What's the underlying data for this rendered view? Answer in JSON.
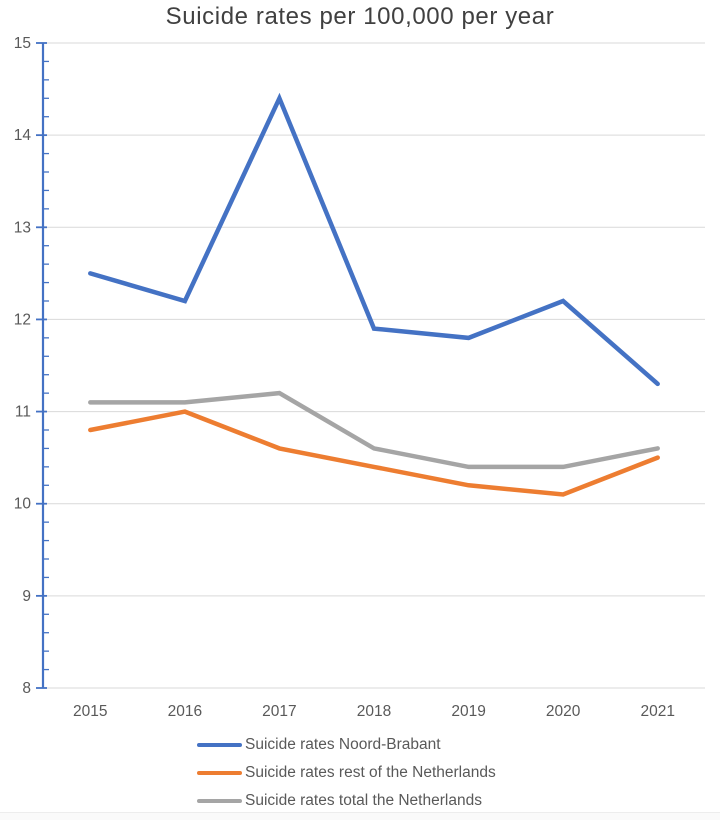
{
  "chart_data": {
    "type": "line",
    "title": "Suicide rates per 100,000 per year",
    "categories": [
      "2015",
      "2016",
      "2017",
      "2018",
      "2019",
      "2020",
      "2021"
    ],
    "series": [
      {
        "name": "Suicide rates Noord-Brabant",
        "color": "#4472C4",
        "values": [
          12.5,
          12.2,
          14.4,
          11.9,
          11.8,
          12.2,
          11.3
        ]
      },
      {
        "name": "Suicide rates rest of the Netherlands",
        "color": "#ED7D31",
        "values": [
          10.8,
          11.0,
          10.6,
          10.4,
          10.2,
          10.1,
          10.5
        ]
      },
      {
        "name": "Suicide rates total the Netherlands",
        "color": "#A5A5A5",
        "values": [
          11.1,
          11.1,
          11.2,
          10.6,
          10.4,
          10.4,
          10.6
        ]
      }
    ],
    "xlabel": "",
    "ylabel": "",
    "ylim": [
      8,
      15
    ],
    "y_major_step": 1,
    "y_minor_step": 0.2,
    "y_tick_labels": [
      "8",
      "9",
      "10",
      "11",
      "12",
      "13",
      "14",
      "15"
    ],
    "grid": "horizontal-major",
    "legend_position": "bottom-left",
    "colors": {
      "axis": "#4472C4",
      "gridline": "#D9D9D9",
      "tick_label": "#595959",
      "title": "#404040"
    }
  }
}
